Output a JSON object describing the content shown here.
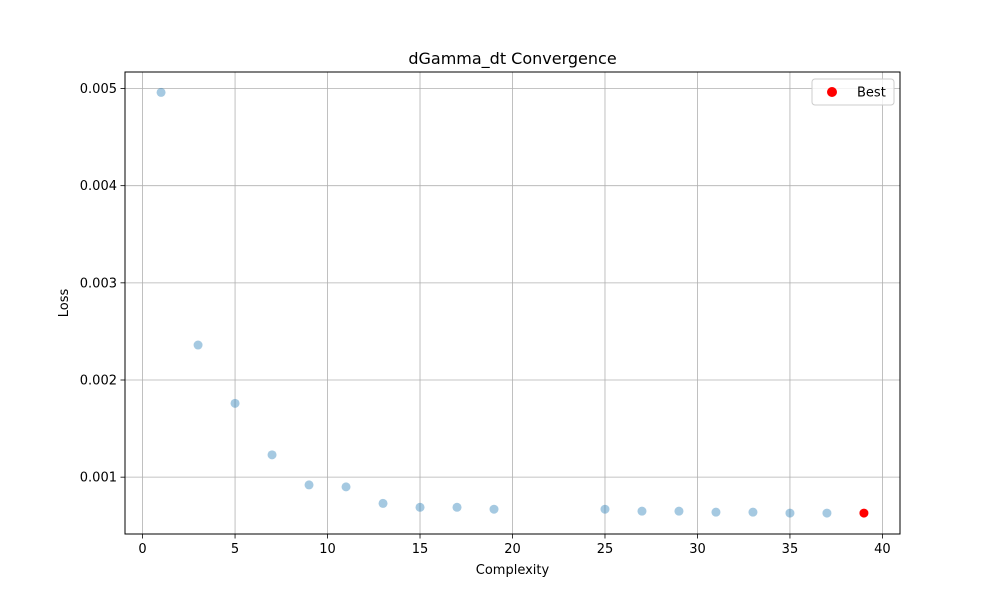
{
  "chart_data": {
    "type": "scatter",
    "title": "dGamma_dt Convergence",
    "xlabel": "Complexity",
    "ylabel": "Loss",
    "xlim": [
      -0.95,
      40.95
    ],
    "ylim": [
      0.000415,
      0.00517
    ],
    "x_ticks": [
      0,
      5,
      10,
      15,
      20,
      25,
      30,
      35,
      40
    ],
    "y_ticks": [
      0.001,
      0.002,
      0.003,
      0.004,
      0.005
    ],
    "x_tick_labels": [
      "0",
      "5",
      "10",
      "15",
      "20",
      "25",
      "30",
      "35",
      "40"
    ],
    "y_tick_labels": [
      "0.001",
      "0.002",
      "0.003",
      "0.004",
      "0.005"
    ],
    "grid": true,
    "legend_position": "top-right",
    "series": [
      {
        "color": "#1f77b4",
        "alpha": 0.4,
        "x": [
          1,
          3,
          5,
          7,
          9,
          11,
          13,
          15,
          17,
          19,
          25,
          27,
          29,
          31,
          33,
          35,
          37
        ],
        "y": [
          0.00496,
          0.00236,
          0.00176,
          0.00123,
          0.00092,
          0.0009,
          0.00073,
          0.00069,
          0.00069,
          0.00067,
          0.00067,
          0.00065,
          0.00065,
          0.00064,
          0.00064,
          0.00063,
          0.00063
        ]
      },
      {
        "name": "Best",
        "color": "#ff0000",
        "alpha": 1.0,
        "x": [
          39
        ],
        "y": [
          0.00063
        ]
      }
    ]
  }
}
